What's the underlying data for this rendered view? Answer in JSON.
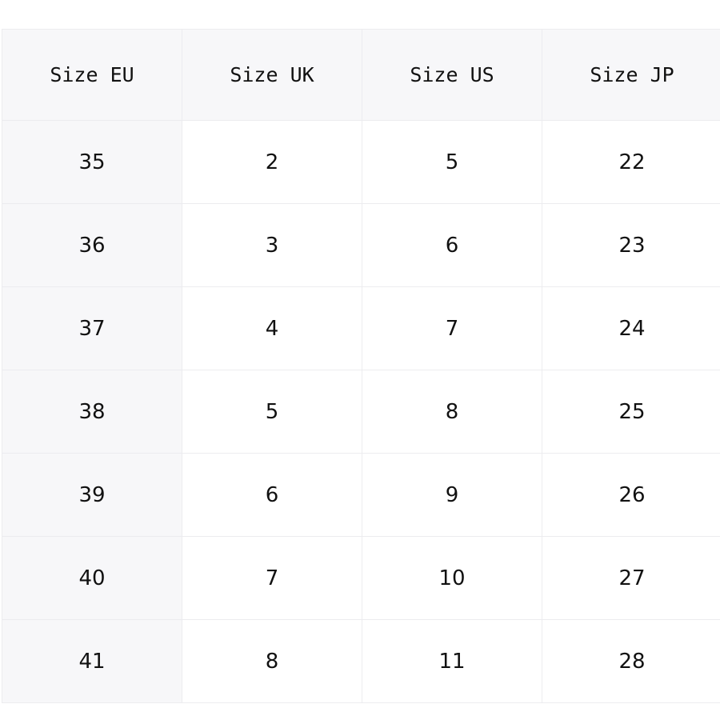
{
  "table": {
    "headers": [
      "Size EU",
      "Size UK",
      "Size US",
      "Size JP"
    ],
    "rows": [
      [
        "35",
        "2",
        "5",
        "22"
      ],
      [
        "36",
        "3",
        "6",
        "23"
      ],
      [
        "37",
        "4",
        "7",
        "24"
      ],
      [
        "38",
        "5",
        "8",
        "25"
      ],
      [
        "39",
        "6",
        "9",
        "26"
      ],
      [
        "40",
        "7",
        "10",
        "27"
      ],
      [
        "41",
        "8",
        "11",
        "28"
      ]
    ]
  }
}
